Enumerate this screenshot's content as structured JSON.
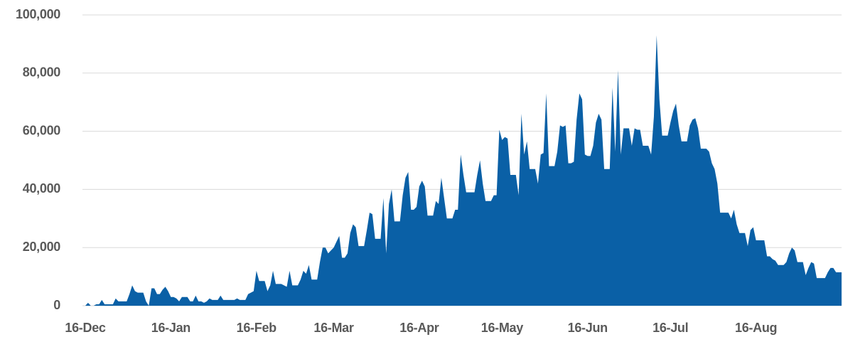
{
  "chart_data": {
    "type": "area",
    "color": "#0a60a6",
    "grid": true,
    "categories": [
      "16-Dec",
      null,
      null,
      null,
      null,
      null,
      null,
      null,
      null,
      null,
      null,
      null,
      null,
      null,
      null,
      null,
      null,
      null,
      null,
      null,
      null,
      null,
      null,
      null,
      null,
      null,
      null,
      null,
      null,
      null,
      null,
      "16-Jan",
      null,
      null,
      null,
      null,
      null,
      null,
      null,
      null,
      null,
      null,
      null,
      null,
      null,
      null,
      null,
      null,
      null,
      null,
      null,
      null,
      null,
      null,
      null,
      null,
      null,
      null,
      null,
      null,
      null,
      null,
      "16-Feb",
      null,
      null,
      null,
      null,
      null,
      null,
      null,
      null,
      null,
      null,
      null,
      null,
      null,
      null,
      null,
      null,
      null,
      null,
      null,
      null,
      null,
      null,
      null,
      null,
      null,
      null,
      null,
      "16-Mar",
      null,
      null,
      null,
      null,
      null,
      null,
      null,
      null,
      null,
      null,
      null,
      null,
      null,
      null,
      null,
      null,
      null,
      null,
      null,
      null,
      null,
      null,
      null,
      null,
      null,
      null,
      null,
      null,
      null,
      null,
      "16-Apr",
      null,
      null,
      null,
      null,
      null,
      null,
      null,
      null,
      null,
      null,
      null,
      null,
      null,
      null,
      null,
      null,
      null,
      null,
      null,
      null,
      null,
      null,
      null,
      null,
      null,
      null,
      null,
      null,
      null,
      "16-May",
      null,
      null,
      null,
      null,
      null,
      null,
      null,
      null,
      null,
      null,
      null,
      null,
      null,
      null,
      null,
      null,
      null,
      null,
      null,
      null,
      null,
      null,
      null,
      null,
      null,
      null,
      null,
      null,
      null,
      null,
      "16-Jun",
      null,
      null,
      null,
      null,
      null,
      null,
      null,
      null,
      null,
      null,
      null,
      null,
      null,
      null,
      null,
      null,
      null,
      null,
      null,
      null,
      null,
      null,
      null,
      null,
      null,
      null,
      null,
      null,
      null,
      "16-Jul",
      null,
      null,
      null,
      null,
      null,
      null,
      null,
      null,
      null,
      null,
      null,
      null,
      null,
      null,
      null,
      null,
      null,
      null,
      null,
      null,
      null,
      null,
      null,
      null,
      null,
      null,
      null,
      null,
      null,
      null,
      "16-Aug",
      null,
      null,
      null,
      null,
      null,
      null,
      null,
      null,
      null,
      null,
      null,
      null,
      null,
      null,
      null,
      null,
      null,
      null,
      null,
      null,
      null,
      null,
      null,
      null,
      null,
      null,
      null,
      null,
      null,
      null,
      null
    ],
    "values": [
      0,
      1000,
      0,
      0,
      500,
      500,
      2000,
      500,
      500,
      500,
      500,
      2500,
      1500,
      1500,
      1500,
      1500,
      4000,
      7000,
      5000,
      4500,
      4500,
      4500,
      1500,
      0,
      6000,
      6000,
      4000,
      4000,
      5500,
      6500,
      5000,
      3000,
      3000,
      2500,
      1500,
      3000,
      3000,
      3000,
      1500,
      1500,
      3500,
      1500,
      1500,
      1000,
      1500,
      2500,
      2000,
      2000,
      2000,
      3500,
      2000,
      2000,
      2000,
      2000,
      2000,
      2500,
      2000,
      2000,
      2000,
      4000,
      4500,
      5000,
      12000,
      8500,
      8500,
      8500,
      5000,
      7000,
      12000,
      7500,
      7500,
      7500,
      7000,
      6500,
      12000,
      7000,
      7000,
      7000,
      9000,
      12000,
      11000,
      14000,
      9000,
      9000,
      9000,
      15000,
      20000,
      20000,
      18000,
      19000,
      20000,
      22000,
      24000,
      16500,
      16500,
      18000,
      25000,
      28000,
      27000,
      20500,
      20500,
      20500,
      26000,
      32000,
      31500,
      23000,
      23000,
      23000,
      37000,
      18000,
      35000,
      40000,
      29000,
      29000,
      29000,
      38000,
      44000,
      46000,
      33000,
      33000,
      34000,
      41000,
      43000,
      41000,
      31000,
      31000,
      31000,
      36000,
      35000,
      44000,
      37000,
      30000,
      30000,
      30000,
      33000,
      33000,
      52000,
      45000,
      39000,
      39000,
      39000,
      39000,
      45000,
      50000,
      42000,
      36000,
      36000,
      36000,
      38000,
      38000,
      60500,
      57000,
      58000,
      57500,
      45000,
      45000,
      45000,
      38000,
      66000,
      52000,
      56500,
      47000,
      47000,
      47000,
      42000,
      52000,
      52500,
      73000,
      48000,
      48000,
      48000,
      53000,
      62000,
      61500,
      62000,
      49000,
      49000,
      49500,
      64000,
      73000,
      71000,
      52000,
      51500,
      51500,
      55000,
      63000,
      66000,
      64000,
      47000,
      47000,
      47000,
      75000,
      53000,
      81000,
      52000,
      61000,
      61000,
      61000,
      55000,
      61000,
      60500,
      60500,
      55000,
      55000,
      55000,
      52000,
      65000,
      93000,
      71000,
      58500,
      58500,
      58500,
      63000,
      67000,
      69500,
      62000,
      56500,
      56500,
      56500,
      62000,
      64000,
      64500,
      61000,
      54000,
      54000,
      54000,
      53000,
      49000,
      47000,
      42000,
      32000,
      32000,
      32000,
      32000,
      30000,
      33000,
      28000,
      25000,
      25000,
      25000,
      20500,
      26000,
      27000,
      22500,
      22500,
      22500,
      22500,
      17000,
      17000,
      16000,
      15500,
      14000,
      14000,
      14000,
      15000,
      18000,
      20000,
      19000,
      15000,
      15000,
      15000,
      10500,
      13000,
      15000,
      14500,
      9500,
      9500,
      9500,
      9500,
      11500,
      13000,
      13000,
      11500,
      11500,
      11500
    ],
    "ylim": [
      0,
      100000
    ],
    "yticks": [
      0,
      {
        "value": 20000,
        "label": "20,000"
      },
      {
        "value": 40000,
        "label": "40,000"
      },
      {
        "value": 60000,
        "label": "60,000"
      },
      {
        "value": 80000,
        "label": "80,000"
      },
      {
        "value": 100000,
        "label": "100,000"
      }
    ]
  }
}
